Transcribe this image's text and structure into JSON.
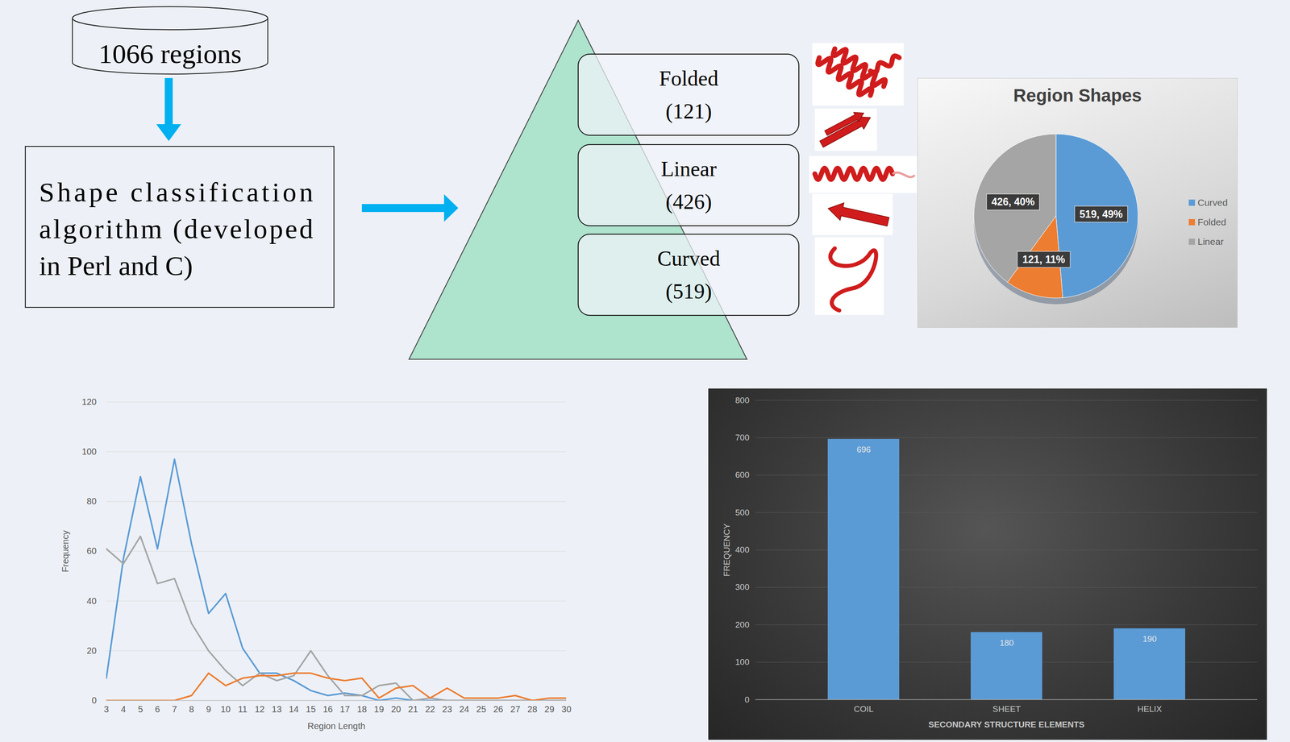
{
  "diagram": {
    "source": "1066 regions",
    "algorithm": "Shape classification algorithm (developed in Perl and C)",
    "classes": [
      {
        "label": "Folded",
        "count": "(121)"
      },
      {
        "label": "Linear",
        "count": "(426)"
      },
      {
        "label": "Curved",
        "count": "(519)"
      }
    ]
  },
  "chart_data": [
    {
      "type": "pie",
      "title": "Region Shapes",
      "categories": [
        "Curved",
        "Folded",
        "Linear"
      ],
      "values": [
        519,
        121,
        426
      ],
      "value_labels": [
        "519, 49%",
        "121, 11%",
        "426, 40%"
      ],
      "colors": [
        "#5b9bd5",
        "#ed7d31",
        "#a5a5a5"
      ],
      "legend": "right",
      "data_labels": true
    },
    {
      "type": "line",
      "xlabel": "Region Length",
      "ylabel": "Frequency",
      "x": [
        3,
        4,
        5,
        6,
        7,
        8,
        9,
        10,
        11,
        12,
        13,
        14,
        15,
        16,
        17,
        18,
        19,
        20,
        21,
        22,
        23,
        24,
        25,
        26,
        27,
        28,
        29,
        30
      ],
      "series": [
        {
          "color": "#5b9bd5",
          "values": [
            9,
            57,
            90,
            61,
            97,
            63,
            35,
            43,
            21,
            11,
            11,
            8,
            4,
            2,
            3,
            2,
            0,
            1,
            0,
            0,
            0,
            0,
            0,
            0,
            0,
            0,
            0,
            0
          ]
        },
        {
          "color": "#a5a5a5",
          "values": [
            61,
            55,
            66,
            47,
            49,
            31,
            20,
            12,
            6,
            11,
            8,
            10,
            20,
            10,
            2,
            2,
            6,
            7,
            0,
            1,
            0,
            0,
            0,
            0,
            0,
            0,
            0,
            0
          ]
        },
        {
          "color": "#ed7d31",
          "values": [
            0,
            0,
            0,
            0,
            0,
            2,
            11,
            6,
            9,
            10,
            10,
            11,
            11,
            9,
            8,
            9,
            1,
            5,
            6,
            1,
            5,
            1,
            1,
            1,
            2,
            0,
            1,
            1
          ]
        }
      ],
      "xlim": [
        3,
        30
      ],
      "xticks": [
        3,
        4,
        5,
        6,
        7,
        8,
        9,
        10,
        11,
        12,
        13,
        14,
        15,
        16,
        17,
        18,
        19,
        20,
        21,
        22,
        23,
        24,
        25,
        26,
        27,
        28,
        29,
        30
      ],
      "ylim": [
        0,
        120
      ],
      "yticks": [
        0,
        20,
        40,
        60,
        80,
        100,
        120
      ],
      "grid": true
    },
    {
      "type": "bar",
      "xlabel": "SECONDARY STRUCTURE ELEMENTS",
      "ylabel": "FREQUENCY",
      "categories": [
        "COIL",
        "SHEET",
        "HELIX"
      ],
      "values": [
        696,
        180,
        190
      ],
      "color": "#5b9bd5",
      "ylim": [
        0,
        800
      ],
      "yticks": [
        0,
        100,
        200,
        300,
        400,
        500,
        600,
        700,
        800
      ],
      "grid": true,
      "data_labels": true
    }
  ]
}
